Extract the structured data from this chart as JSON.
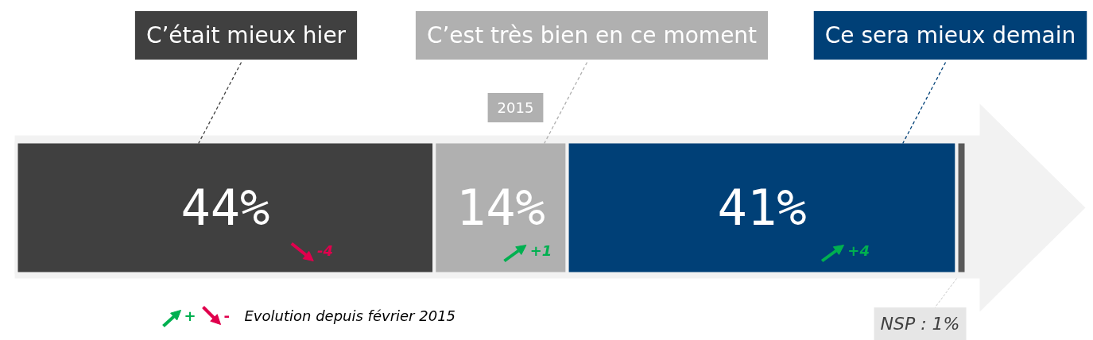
{
  "chart_data": {
    "type": "bar",
    "orientation": "horizontal",
    "stacked": true,
    "categories": [
      null
    ],
    "series": [
      {
        "name": "C’était mieux hier",
        "color": "#404040",
        "values": [
          44
        ],
        "value_labels": [
          "44%"
        ]
      },
      {
        "name": "C’est très bien en ce moment",
        "color": "#b0b0b0",
        "values": [
          14
        ],
        "value_labels": [
          "14%"
        ]
      },
      {
        "name": "Ce sera mieux demain",
        "color": "#004077",
        "values": [
          41
        ],
        "value_labels": [
          "41%"
        ]
      },
      {
        "color": "#595959",
        "values": [
          1
        ],
        "value_labels": [
          "NSP : 1%"
        ]
      }
    ],
    "xlim": [
      0,
      100
    ],
    "annotations": [
      "2015",
      "-4",
      "+1",
      "+4",
      "+",
      "-",
      "Evolution depuis février 2015"
    ],
    "grid": false,
    "tick_labels": false
  }
}
